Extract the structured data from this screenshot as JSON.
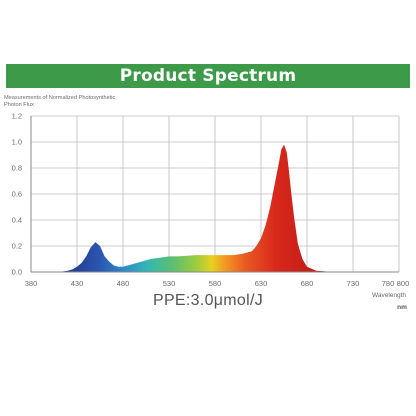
{
  "banner": {
    "title": "Product Spectrum",
    "color": "#3c9a48"
  },
  "footer": {
    "ppe_text": "PPE:3.0μmol/J"
  },
  "chart_data": {
    "type": "area",
    "ylabel": "Measurements of Normalized Photosynthetic Photon Flux",
    "xlabel": "Wavelength",
    "xunit": "nm",
    "xlim": [
      380,
      780
    ],
    "ylim": [
      0,
      1.2
    ],
    "x_ticks": [
      "380",
      "430",
      "480",
      "530",
      "580",
      "630",
      "680",
      "730",
      "780",
      "800"
    ],
    "y_ticks": [
      "1.2",
      "1.0",
      "0.8",
      "0.6",
      "0.4",
      "0.2",
      "0.0"
    ],
    "grid": true,
    "series": [
      {
        "x": [
          400,
          410,
          420,
          425,
          430,
          435,
          440,
          445,
          450,
          455,
          460,
          465,
          470,
          475,
          480,
          485,
          490,
          500,
          510,
          520,
          530,
          540,
          550,
          560,
          570,
          580,
          590,
          600,
          610,
          620,
          625,
          630,
          635,
          640,
          645,
          650,
          652,
          655,
          658,
          660,
          663,
          666,
          670,
          675,
          680,
          690,
          700,
          710,
          720,
          730
        ],
        "values": [
          0.0,
          0.0,
          0.01,
          0.02,
          0.04,
          0.07,
          0.12,
          0.19,
          0.23,
          0.2,
          0.12,
          0.08,
          0.05,
          0.04,
          0.04,
          0.05,
          0.06,
          0.08,
          0.1,
          0.11,
          0.12,
          0.12,
          0.125,
          0.13,
          0.13,
          0.13,
          0.13,
          0.13,
          0.14,
          0.16,
          0.2,
          0.26,
          0.36,
          0.5,
          0.68,
          0.86,
          0.94,
          0.98,
          0.92,
          0.8,
          0.6,
          0.42,
          0.22,
          0.1,
          0.04,
          0.01,
          0.005,
          0.0,
          0.0,
          0.0
        ]
      }
    ]
  }
}
